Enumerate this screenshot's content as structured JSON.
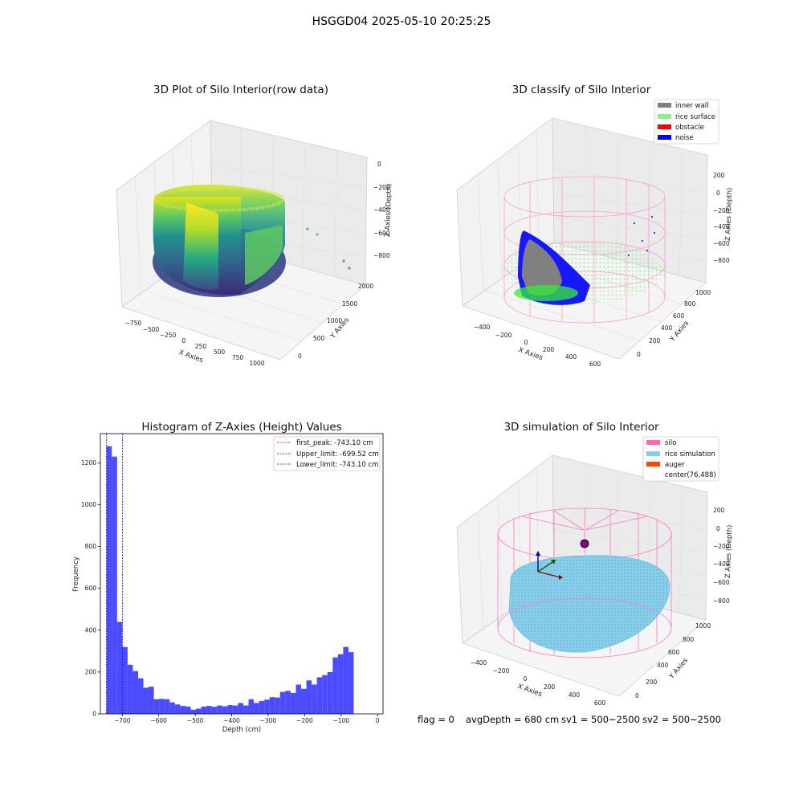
{
  "suptitle": "HSGGD04 2025-05-10 20:25:25",
  "footer": {
    "flag": "flag = 0",
    "avg_depth": "avgDepth = 680 cm",
    "sv1": "sv1 = 500~2500",
    "sv2": "sv2 = 500~2500"
  },
  "colors": {
    "inner_wall": "#808080",
    "rice_surface": "#90EE90",
    "obstacle": "#FF0000",
    "noise": "#0000FF",
    "silo": "#FF69B4",
    "rice_simulation": "#87CEEB",
    "auger": "#FF4500",
    "histogram": "#4b4bff",
    "first_peak_line": "#ff0000",
    "limit_line": "#0000ff"
  },
  "chart_data": [
    {
      "type": "scatter",
      "projection": "3d",
      "title": "3D Plot of Silo Interior(row data)",
      "xlabel": "X Axies",
      "ylabel": "Y Axies",
      "zlabel": "Z Axies (Depth)",
      "xticks": [
        "−750",
        "−500",
        "−250",
        "0",
        "250",
        "500",
        "750",
        "1000"
      ],
      "yticks": [
        "0",
        "500",
        "1000",
        "1500",
        "2000"
      ],
      "zticks": [
        "0",
        "−200",
        "−400",
        "−600",
        "−800"
      ],
      "colormap": "viridis"
    },
    {
      "type": "scatter",
      "projection": "3d",
      "title": "3D classify of Silo Interior",
      "xlabel": "X Axies",
      "ylabel": "Y Axies",
      "zlabel": "Z Axies (Depth)",
      "xticks": [
        "−400",
        "−200",
        "0",
        "200",
        "400",
        "600"
      ],
      "yticks": [
        "0",
        "200",
        "400",
        "600",
        "800",
        "1000"
      ],
      "zticks": [
        "200",
        "0",
        "−200",
        "−400",
        "−600",
        "−800"
      ],
      "legend_position": "top-right",
      "legend": [
        {
          "label": "inner wall",
          "color": "#808080"
        },
        {
          "label": "rice surface",
          "color": "#90EE90"
        },
        {
          "label": "obstacle",
          "color": "#FF0000"
        },
        {
          "label": "noise",
          "color": "#0000FF"
        }
      ]
    },
    {
      "type": "bar",
      "title": "Histogram of Z-Axies (Height) Values",
      "xlabel": "Depth (cm)",
      "ylabel": "Frequency",
      "xlim": [
        -760,
        15
      ],
      "ylim": [
        0,
        1340
      ],
      "xticks": [
        -700,
        -600,
        -500,
        -400,
        -300,
        -200,
        -100,
        0
      ],
      "xtick_labels": [
        "−700",
        "−600",
        "−500",
        "−400",
        "−300",
        "−200",
        "−100",
        "0"
      ],
      "yticks": [
        0,
        200,
        400,
        600,
        800,
        1000,
        1200
      ],
      "bin_width": 14.42,
      "bin_start": -743.1,
      "values": [
        1280,
        1230,
        440,
        320,
        235,
        205,
        170,
        125,
        130,
        70,
        72,
        70,
        55,
        45,
        38,
        35,
        20,
        25,
        35,
        38,
        34,
        40,
        36,
        42,
        40,
        52,
        40,
        70,
        52,
        62,
        68,
        80,
        78,
        105,
        110,
        100,
        140,
        120,
        160,
        140,
        175,
        185,
        200,
        270,
        285,
        320,
        295
      ],
      "vlines": [
        {
          "label": "first_peak: -743.10 cm",
          "x": -743.1,
          "color": "#ff0000"
        },
        {
          "label": "Upper_limit: -699.52 cm",
          "x": -699.52,
          "color": "#0000ff"
        },
        {
          "label": "Lower_limit: -743.10 cm",
          "x": -743.1,
          "color": "#0000ff"
        }
      ],
      "legend_position": "top-right"
    },
    {
      "type": "scatter",
      "projection": "3d",
      "title": "3D simulation of Silo Interior",
      "xlabel": "X Axies",
      "ylabel": "Y Axies",
      "zlabel": "Z Axies (Depth)",
      "xticks": [
        "−400",
        "−200",
        "0",
        "200",
        "400",
        "600"
      ],
      "yticks": [
        "0",
        "200",
        "400",
        "600",
        "800",
        "1000"
      ],
      "zticks": [
        "200",
        "0",
        "−200",
        "−400",
        "−600",
        "−800"
      ],
      "legend_position": "top-right",
      "legend": [
        {
          "label": "silo",
          "color": "#FF69B4"
        },
        {
          "label": "rice simulation",
          "color": "#87CEEB"
        },
        {
          "label": "auger",
          "color": "#FF4500"
        },
        {
          "label": "center(76,488)",
          "color": ""
        }
      ]
    }
  ]
}
